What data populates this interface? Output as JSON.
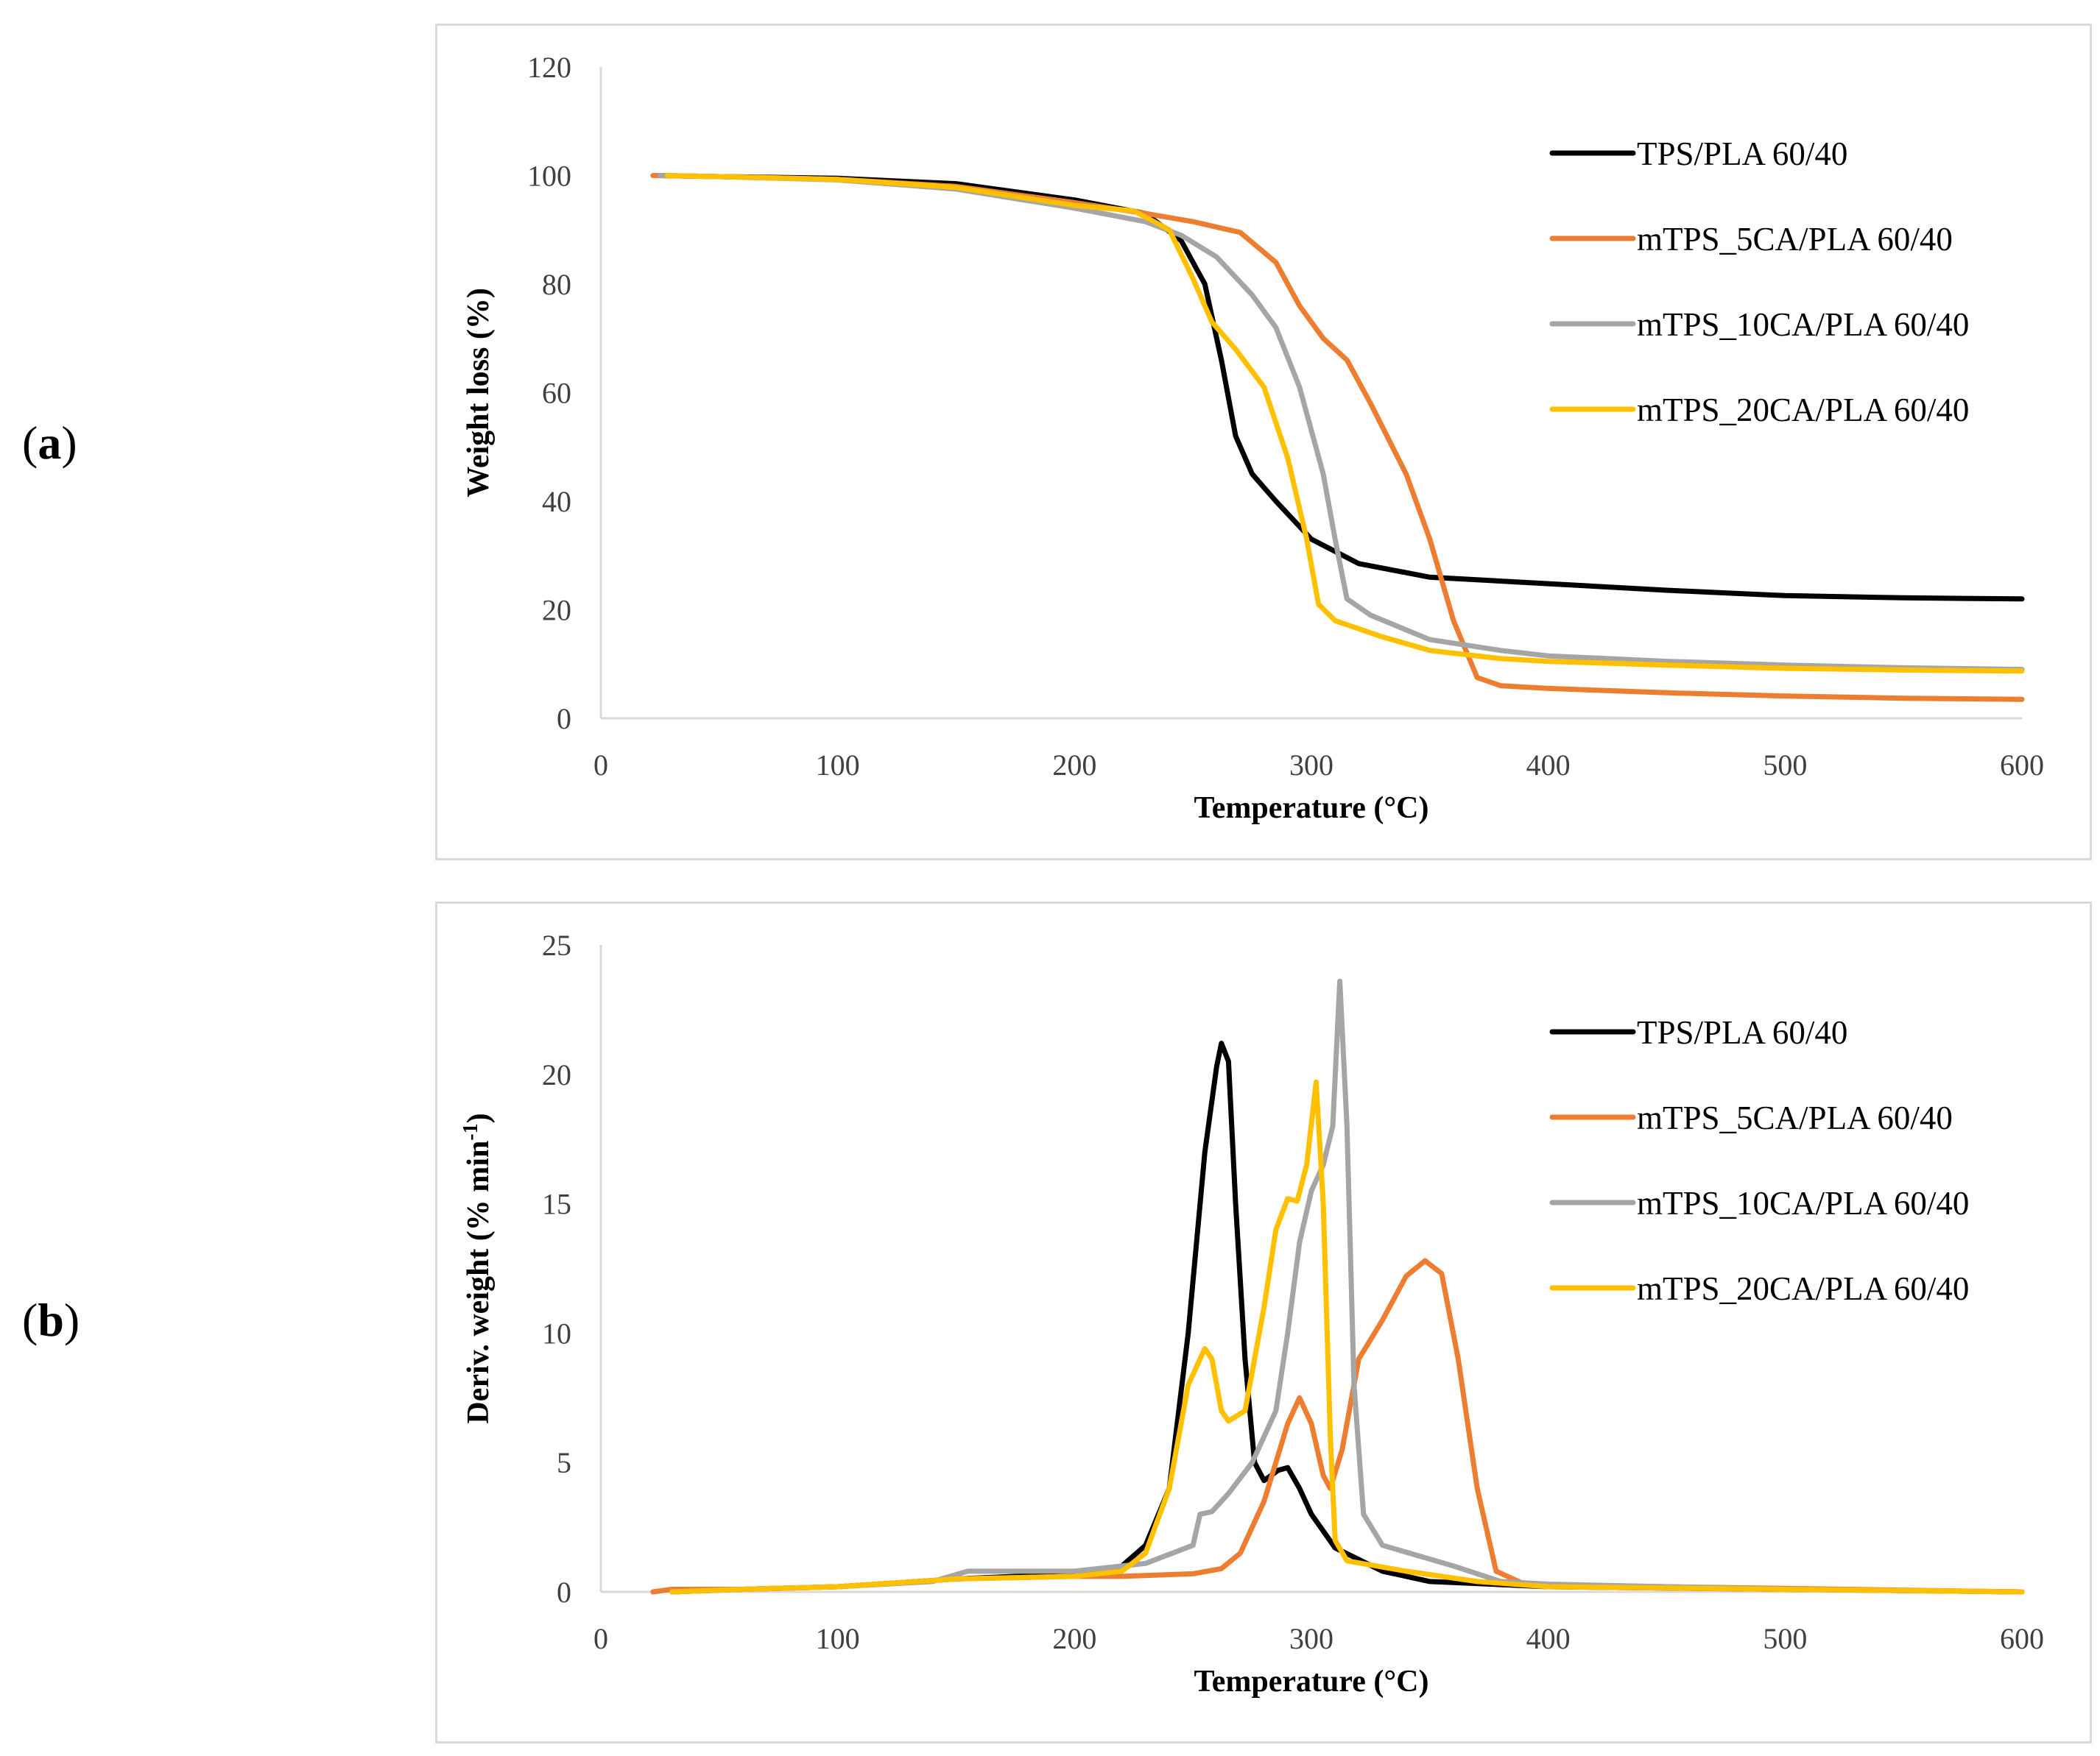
{
  "panels": [
    {
      "label_open": "(",
      "label_letter": "a",
      "label_close": ")"
    },
    {
      "label_open": "(",
      "label_letter": "b",
      "label_close": ")"
    }
  ],
  "chart_data": [
    {
      "type": "line",
      "xlabel": "Temperature (°C)",
      "ylabel": "Weight loss (%)",
      "xlim": [
        0,
        600
      ],
      "ylim": [
        0,
        120
      ],
      "xticks": [
        0,
        100,
        200,
        300,
        400,
        500,
        600
      ],
      "yticks": [
        0,
        20,
        40,
        60,
        80,
        100,
        120
      ],
      "grid": false,
      "legend_position": "top-right",
      "series": [
        {
          "name": "TPS/PLA 60/40",
          "color": "#000000",
          "points": [
            [
              25,
              100
            ],
            [
              50,
              99.8
            ],
            [
              100,
              99.5
            ],
            [
              150,
              98.5
            ],
            [
              200,
              95.5
            ],
            [
              230,
              93
            ],
            [
              245,
              88
            ],
            [
              255,
              80
            ],
            [
              262,
              66
            ],
            [
              268,
              52
            ],
            [
              275,
              45
            ],
            [
              285,
              40
            ],
            [
              300,
              33
            ],
            [
              320,
              28.5
            ],
            [
              350,
              26
            ],
            [
              400,
              24.8
            ],
            [
              450,
              23.6
            ],
            [
              500,
              22.6
            ],
            [
              550,
              22.2
            ],
            [
              600,
              22
            ]
          ]
        },
        {
          "name": "mTPS_5CA/PLA 60/40",
          "color": "#ed7d31",
          "points": [
            [
              22,
              100
            ],
            [
              50,
              99.8
            ],
            [
              100,
              99.3
            ],
            [
              150,
              98
            ],
            [
              200,
              95
            ],
            [
              230,
              93
            ],
            [
              250,
              91.5
            ],
            [
              270,
              89.5
            ],
            [
              285,
              84
            ],
            [
              295,
              76
            ],
            [
              305,
              70
            ],
            [
              315,
              66
            ],
            [
              325,
              58
            ],
            [
              340,
              45
            ],
            [
              350,
              33
            ],
            [
              360,
              18
            ],
            [
              370,
              7.5
            ],
            [
              380,
              6
            ],
            [
              400,
              5.5
            ],
            [
              450,
              4.7
            ],
            [
              500,
              4.1
            ],
            [
              550,
              3.7
            ],
            [
              600,
              3.5
            ]
          ]
        },
        {
          "name": "mTPS_10CA/PLA 60/40",
          "color": "#a5a5a5",
          "points": [
            [
              25,
              100
            ],
            [
              50,
              99.8
            ],
            [
              100,
              99.2
            ],
            [
              150,
              97.5
            ],
            [
              200,
              94
            ],
            [
              230,
              91.5
            ],
            [
              245,
              89
            ],
            [
              260,
              85
            ],
            [
              275,
              78
            ],
            [
              285,
              72
            ],
            [
              295,
              61
            ],
            [
              305,
              45
            ],
            [
              310,
              33
            ],
            [
              315,
              22
            ],
            [
              325,
              19
            ],
            [
              350,
              14.5
            ],
            [
              380,
              12.5
            ],
            [
              400,
              11.5
            ],
            [
              450,
              10.5
            ],
            [
              500,
              9.8
            ],
            [
              550,
              9.3
            ],
            [
              600,
              9
            ]
          ]
        },
        {
          "name": "mTPS_20CA/PLA 60/40",
          "color": "#ffc000",
          "points": [
            [
              28,
              100
            ],
            [
              50,
              99.8
            ],
            [
              100,
              99.3
            ],
            [
              150,
              97.8
            ],
            [
              200,
              94.5
            ],
            [
              225,
              93.5
            ],
            [
              240,
              90
            ],
            [
              250,
              81
            ],
            [
              258,
              73
            ],
            [
              268,
              68
            ],
            [
              280,
              61
            ],
            [
              290,
              48
            ],
            [
              298,
              33
            ],
            [
              303,
              21
            ],
            [
              310,
              18
            ],
            [
              330,
              15
            ],
            [
              350,
              12.5
            ],
            [
              380,
              11
            ],
            [
              400,
              10.5
            ],
            [
              450,
              9.8
            ],
            [
              500,
              9.2
            ],
            [
              550,
              8.9
            ],
            [
              600,
              8.7
            ]
          ]
        }
      ]
    },
    {
      "type": "line",
      "xlabel": "Temperature (°C)",
      "ylabel": "Deriv. weight (% min",
      "ylabel_sup": "-1",
      "ylabel_close": ")",
      "xlim": [
        0,
        600
      ],
      "ylim": [
        0,
        25
      ],
      "xticks": [
        0,
        100,
        200,
        300,
        400,
        500,
        600
      ],
      "yticks": [
        0,
        5,
        10,
        15,
        20,
        25
      ],
      "grid": false,
      "legend_position": "top-right",
      "series": [
        {
          "name": "TPS/PLA 60/40",
          "color": "#000000",
          "points": [
            [
              30,
              0
            ],
            [
              60,
              0.1
            ],
            [
              100,
              0.2
            ],
            [
              150,
              0.5
            ],
            [
              200,
              0.7
            ],
            [
              220,
              1
            ],
            [
              230,
              1.8
            ],
            [
              240,
              4
            ],
            [
              248,
              10
            ],
            [
              255,
              17
            ],
            [
              260,
              20.3
            ],
            [
              262,
              21.2
            ],
            [
              265,
              20.5
            ],
            [
              268,
              15
            ],
            [
              272,
              9
            ],
            [
              276,
              5
            ],
            [
              280,
              4.3
            ],
            [
              286,
              4.7
            ],
            [
              290,
              4.8
            ],
            [
              295,
              4
            ],
            [
              300,
              3
            ],
            [
              310,
              1.7
            ],
            [
              330,
              0.8
            ],
            [
              350,
              0.4
            ],
            [
              400,
              0.2
            ],
            [
              500,
              0.1
            ],
            [
              600,
              0
            ]
          ]
        },
        {
          "name": "mTPS_5CA/PLA 60/40",
          "color": "#ed7d31",
          "points": [
            [
              22,
              0
            ],
            [
              30,
              0.1
            ],
            [
              60,
              0.1
            ],
            [
              100,
              0.2
            ],
            [
              150,
              0.5
            ],
            [
              200,
              0.6
            ],
            [
              220,
              0.6
            ],
            [
              250,
              0.7
            ],
            [
              262,
              0.9
            ],
            [
              270,
              1.5
            ],
            [
              280,
              3.5
            ],
            [
              290,
              6.5
            ],
            [
              295,
              7.5
            ],
            [
              300,
              6.5
            ],
            [
              305,
              4.5
            ],
            [
              308,
              4
            ],
            [
              313,
              5.5
            ],
            [
              320,
              9
            ],
            [
              330,
              10.5
            ],
            [
              340,
              12.2
            ],
            [
              348,
              12.8
            ],
            [
              355,
              12.3
            ],
            [
              362,
              9
            ],
            [
              370,
              4
            ],
            [
              378,
              0.8
            ],
            [
              390,
              0.3
            ],
            [
              450,
              0.2
            ],
            [
              600,
              0
            ]
          ]
        },
        {
          "name": "mTPS_10CA/PLA 60/40",
          "color": "#a5a5a5",
          "points": [
            [
              30,
              0
            ],
            [
              60,
              0.1
            ],
            [
              100,
              0.2
            ],
            [
              140,
              0.4
            ],
            [
              155,
              0.8
            ],
            [
              200,
              0.8
            ],
            [
              230,
              1.1
            ],
            [
              250,
              1.8
            ],
            [
              253,
              3
            ],
            [
              258,
              3.1
            ],
            [
              265,
              3.8
            ],
            [
              275,
              5
            ],
            [
              285,
              7
            ],
            [
              290,
              10
            ],
            [
              295,
              13.5
            ],
            [
              300,
              15.5
            ],
            [
              305,
              16.5
            ],
            [
              309,
              18
            ],
            [
              312,
              23.6
            ],
            [
              315,
              18
            ],
            [
              318,
              8
            ],
            [
              322,
              3
            ],
            [
              330,
              1.8
            ],
            [
              360,
              1
            ],
            [
              380,
              0.4
            ],
            [
              400,
              0.3
            ],
            [
              500,
              0.1
            ],
            [
              600,
              0
            ]
          ]
        },
        {
          "name": "mTPS_20CA/PLA 60/40",
          "color": "#ffc000",
          "points": [
            [
              30,
              0
            ],
            [
              60,
              0.1
            ],
            [
              100,
              0.2
            ],
            [
              150,
              0.5
            ],
            [
              200,
              0.6
            ],
            [
              220,
              0.8
            ],
            [
              230,
              1.5
            ],
            [
              240,
              4
            ],
            [
              248,
              8
            ],
            [
              255,
              9.4
            ],
            [
              258,
              9
            ],
            [
              262,
              7
            ],
            [
              265,
              6.6
            ],
            [
              272,
              7
            ],
            [
              280,
              11
            ],
            [
              285,
              14
            ],
            [
              290,
              15.2
            ],
            [
              294,
              15.1
            ],
            [
              298,
              16.5
            ],
            [
              302,
              19.7
            ],
            [
              305,
              15
            ],
            [
              308,
              6
            ],
            [
              310,
              2
            ],
            [
              315,
              1.2
            ],
            [
              340,
              0.8
            ],
            [
              370,
              0.4
            ],
            [
              400,
              0.2
            ],
            [
              500,
              0.1
            ],
            [
              600,
              0
            ]
          ]
        }
      ]
    }
  ]
}
